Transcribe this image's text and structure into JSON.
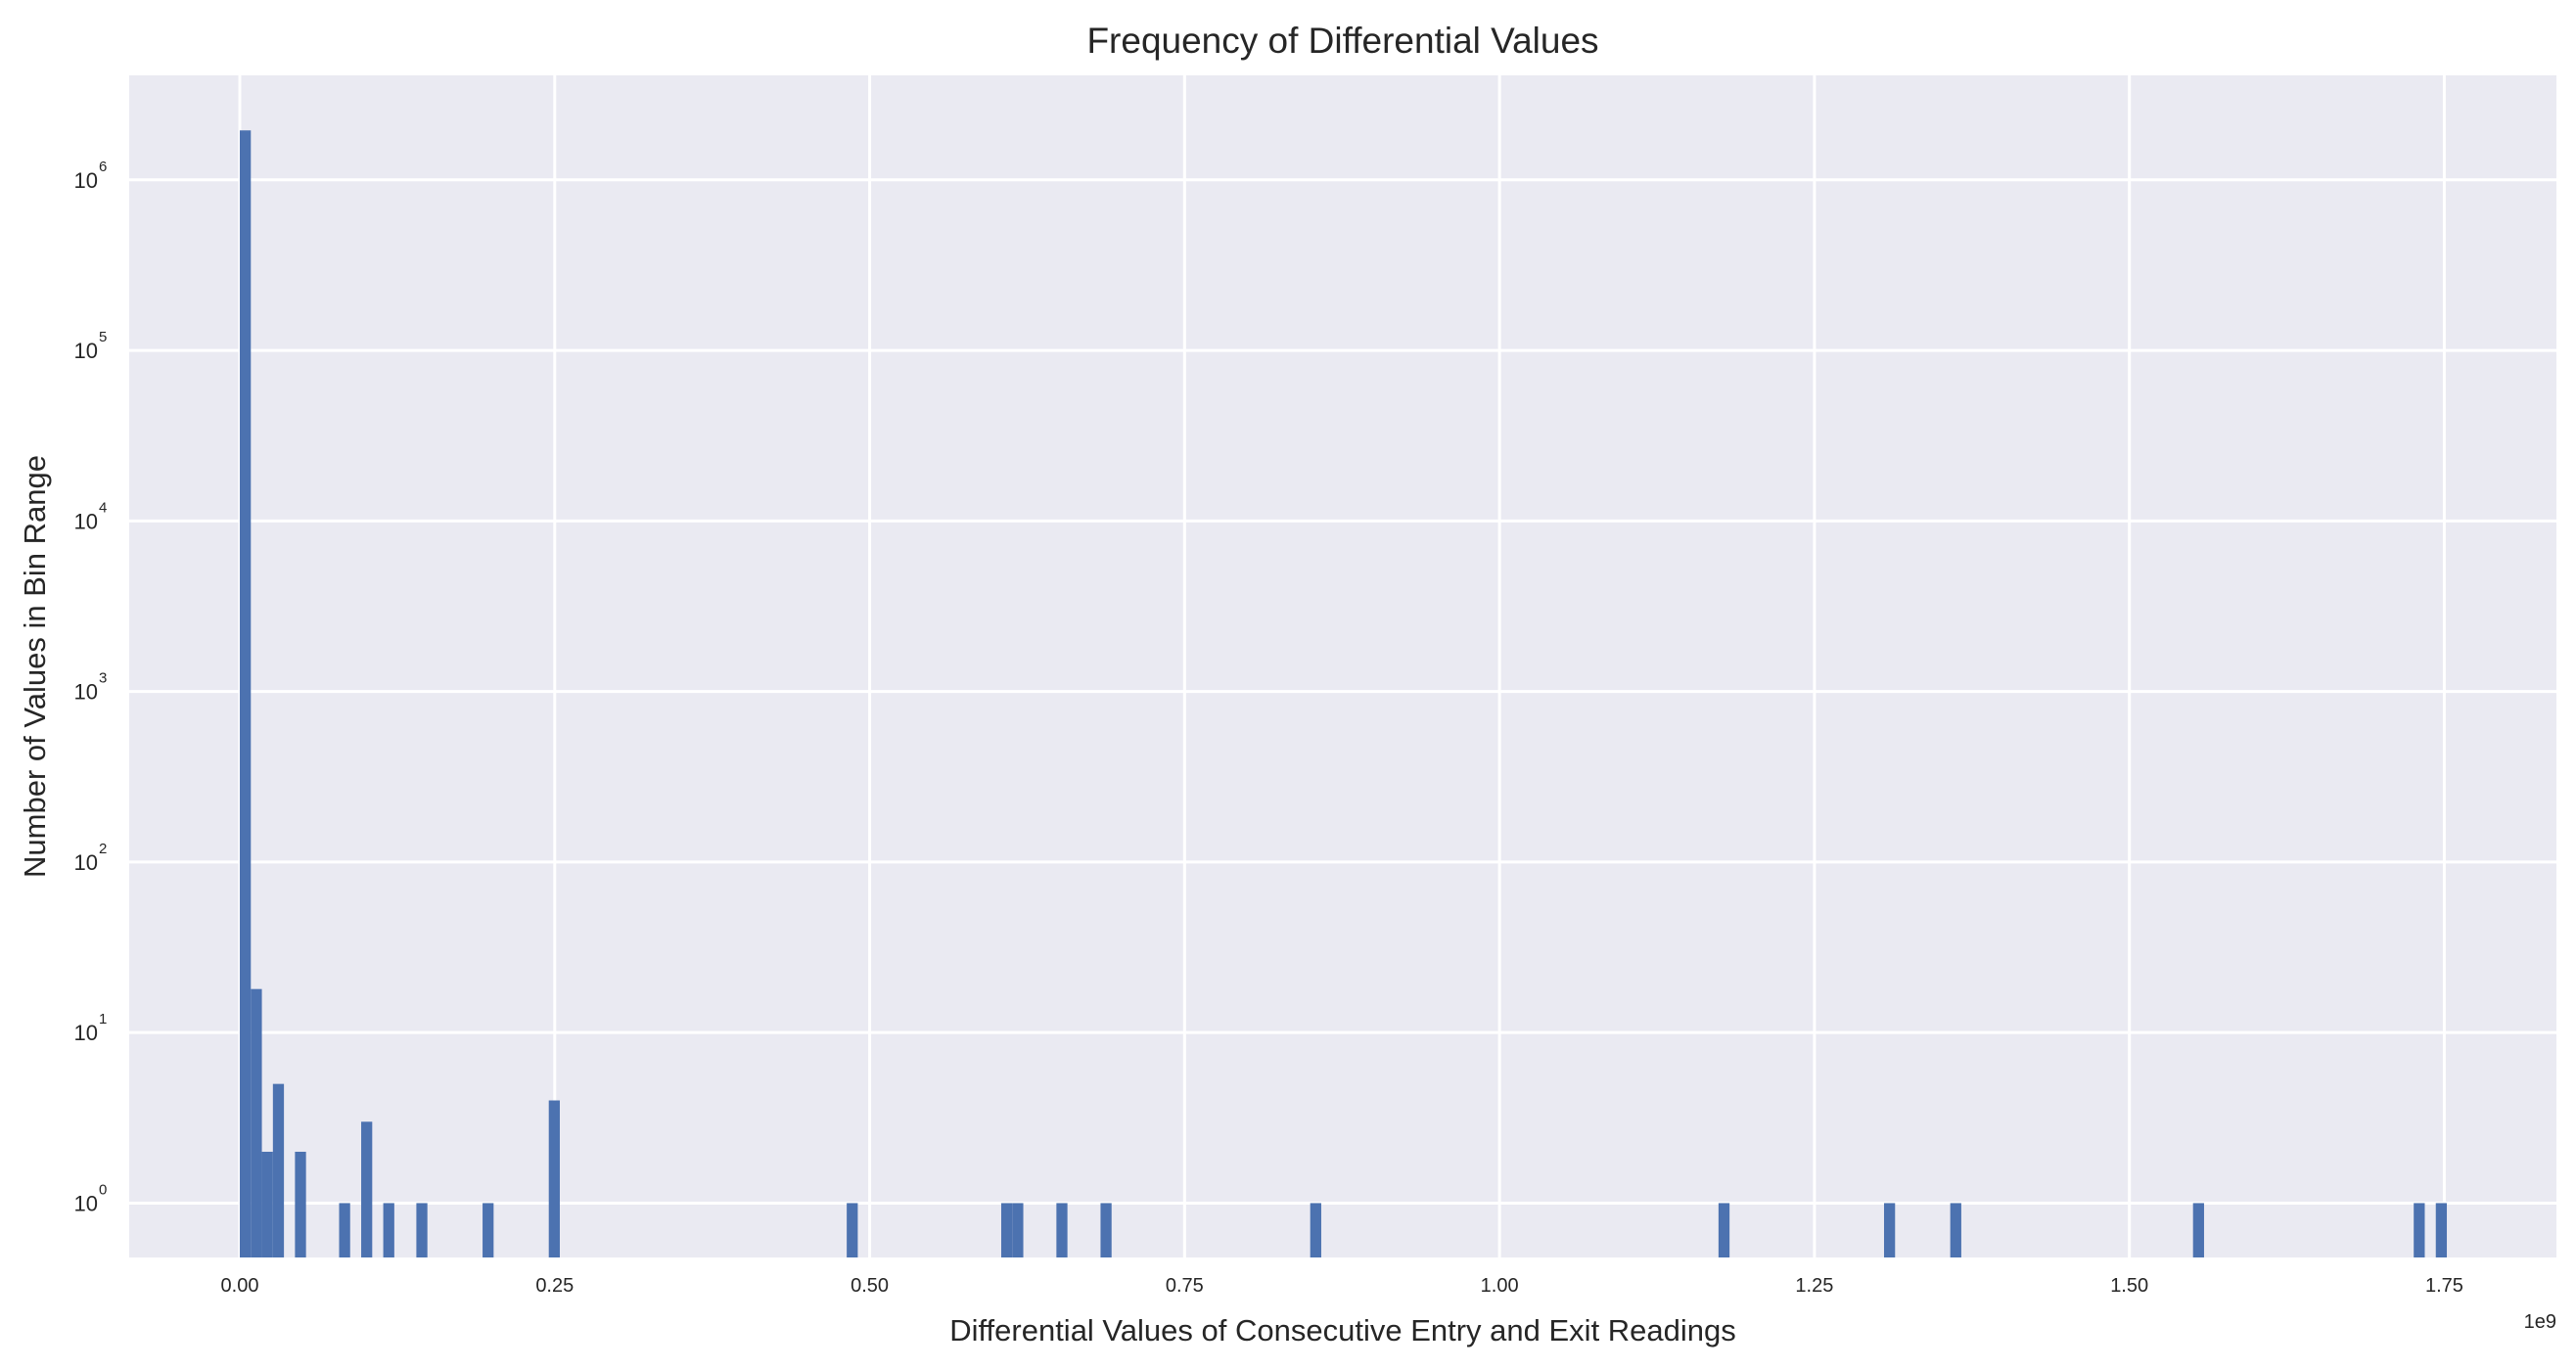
{
  "chart_data": {
    "type": "bar",
    "title": "Frequency of Differential Values",
    "xlabel": "Differential Values of Consecutive Entry and Exit Readings",
    "ylabel": "Number of Values in Bin Range",
    "x_offset_label": "1e9",
    "x_scale": "linear",
    "y_scale": "log",
    "xlim": [
      -87800000,
      1839000000
    ],
    "ylim": [
      0.48,
      4100000
    ],
    "x_ticks": [
      0,
      250000000,
      500000000,
      750000000,
      1000000000,
      1250000000,
      1500000000,
      1750000000
    ],
    "x_tick_labels": [
      "0.00",
      "0.25",
      "0.50",
      "0.75",
      "1.00",
      "1.25",
      "1.50",
      "1.75"
    ],
    "y_ticks": [
      1,
      10,
      100,
      1000,
      10000,
      100000,
      1000000
    ],
    "y_tick_exponents": [
      "0",
      "1",
      "2",
      "3",
      "4",
      "5",
      "6"
    ],
    "y_tick_base": "10",
    "grid": true,
    "bar_color": "#4c72b0",
    "background_color": "#eaeaf2",
    "bin_width": 8760000,
    "bins": [
      {
        "bin_start": 0,
        "count": 1950000
      },
      {
        "bin_start": 8760000,
        "count": 18
      },
      {
        "bin_start": 17520000,
        "count": 2
      },
      {
        "bin_start": 26280000,
        "count": 5
      },
      {
        "bin_start": 43800000,
        "count": 2
      },
      {
        "bin_start": 78840000,
        "count": 1
      },
      {
        "bin_start": 96360000,
        "count": 3
      },
      {
        "bin_start": 113880000,
        "count": 1
      },
      {
        "bin_start": 140160000,
        "count": 1
      },
      {
        "bin_start": 192720000,
        "count": 1
      },
      {
        "bin_start": 245280000,
        "count": 4
      },
      {
        "bin_start": 481800000,
        "count": 1
      },
      {
        "bin_start": 604440000,
        "count": 1
      },
      {
        "bin_start": 613200000,
        "count": 1
      },
      {
        "bin_start": 648240000,
        "count": 1
      },
      {
        "bin_start": 683280000,
        "count": 1
      },
      {
        "bin_start": 849720000,
        "count": 1
      },
      {
        "bin_start": 1173840000,
        "count": 1
      },
      {
        "bin_start": 1305240000,
        "count": 1
      },
      {
        "bin_start": 1357800000,
        "count": 1
      },
      {
        "bin_start": 1550520000,
        "count": 1
      },
      {
        "bin_start": 1725720000,
        "count": 1
      },
      {
        "bin_start": 1743240000,
        "count": 1
      }
    ]
  }
}
